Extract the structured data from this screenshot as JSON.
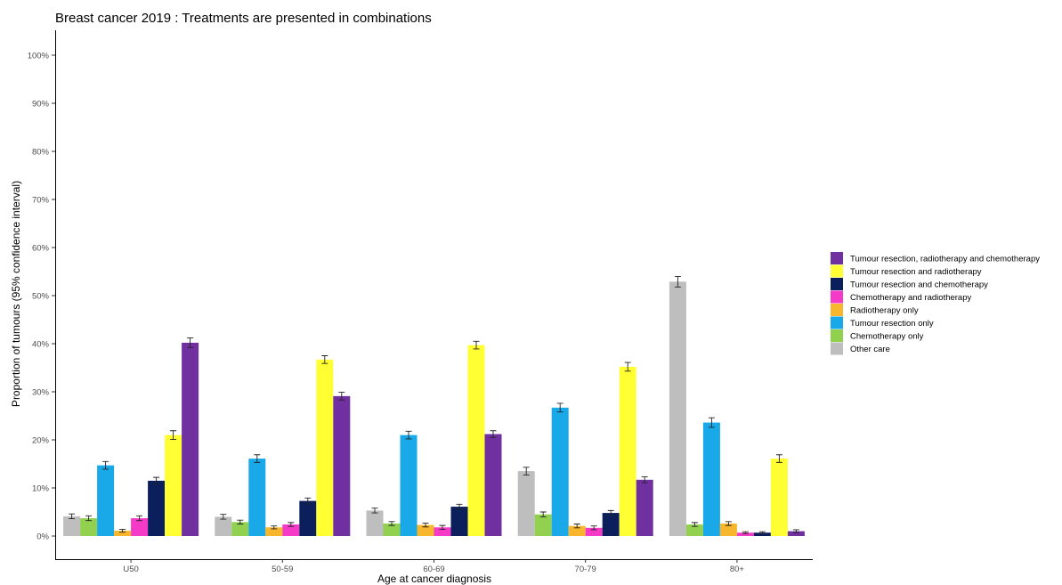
{
  "chart_data": {
    "type": "bar",
    "title": "Breast cancer  2019 : Treatments are presented in combinations",
    "xlabel": "Age at cancer diagnosis",
    "ylabel": "Proportion of tumours (95% confidence interval)",
    "ylim": [
      0,
      100
    ],
    "yticks": [
      "0%",
      "10%",
      "20%",
      "30%",
      "40%",
      "50%",
      "60%",
      "70%",
      "80%",
      "90%",
      "100%"
    ],
    "ytick_values": [
      0,
      10,
      20,
      30,
      40,
      50,
      60,
      70,
      80,
      90,
      100
    ],
    "categories": [
      "U50",
      "50-59",
      "60-69",
      "70-79",
      "80+"
    ],
    "grid": false,
    "legend_position": "right",
    "series": [
      {
        "name": "Other care",
        "color": "#bebebe",
        "values": [
          4.1,
          4.0,
          5.3,
          13.5,
          52.9
        ],
        "err": [
          0.5,
          0.5,
          0.5,
          0.8,
          1.1
        ]
      },
      {
        "name": "Chemotherapy only",
        "color": "#92d050",
        "values": [
          3.7,
          2.9,
          2.6,
          4.5,
          2.4
        ],
        "err": [
          0.5,
          0.4,
          0.4,
          0.5,
          0.4
        ]
      },
      {
        "name": "Tumour resection only",
        "color": "#1aa9e8",
        "values": [
          14.7,
          16.1,
          21.0,
          26.7,
          23.6
        ],
        "err": [
          0.8,
          0.8,
          0.8,
          0.9,
          1.0
        ]
      },
      {
        "name": "Radiotherapy only",
        "color": "#f8b62d",
        "values": [
          1.1,
          1.8,
          2.3,
          2.1,
          2.6
        ],
        "err": [
          0.3,
          0.3,
          0.4,
          0.4,
          0.4
        ]
      },
      {
        "name": "Chemotherapy and radiotherapy",
        "color": "#f53ac8",
        "values": [
          3.7,
          2.4,
          1.8,
          1.7,
          0.7
        ],
        "err": [
          0.5,
          0.4,
          0.4,
          0.4,
          0.2
        ]
      },
      {
        "name": "Tumour resection and chemotherapy",
        "color": "#0b1f5c",
        "values": [
          11.5,
          7.3,
          6.1,
          4.8,
          0.7
        ],
        "err": [
          0.7,
          0.6,
          0.5,
          0.5,
          0.2
        ]
      },
      {
        "name": "Tumour resection and radiotherapy",
        "color": "#ffff33",
        "values": [
          21.0,
          36.7,
          39.7,
          35.2,
          16.1
        ],
        "err": [
          0.9,
          0.8,
          0.8,
          0.9,
          0.8
        ]
      },
      {
        "name": "Tumour resection, radiotherapy and chemotherapy",
        "color": "#7030a0",
        "values": [
          40.2,
          29.1,
          21.2,
          11.7,
          1.0
        ],
        "err": [
          1.0,
          0.8,
          0.7,
          0.6,
          0.3
        ]
      }
    ],
    "legend_order": [
      7,
      6,
      5,
      4,
      3,
      2,
      1,
      0
    ]
  }
}
